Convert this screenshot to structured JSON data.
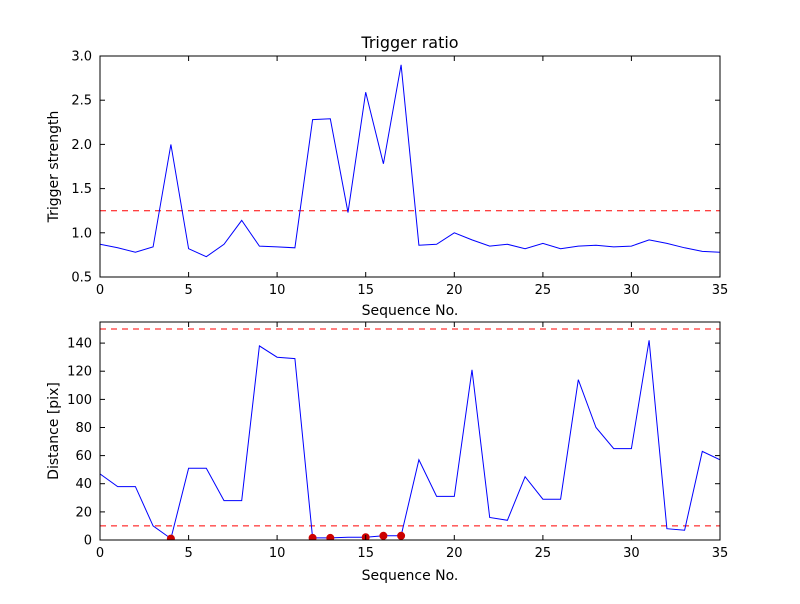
{
  "figure": {
    "background": "#ffffff",
    "line_color": "#0000ff",
    "threshold_color": "#ff0000",
    "marker_color": "#cc0000"
  },
  "chart_data": [
    {
      "type": "line",
      "title": "Trigger ratio",
      "xlabel": "Sequence No.",
      "ylabel": "Trigger strength",
      "xlim": [
        0,
        35
      ],
      "ylim": [
        0.5,
        3.0
      ],
      "grid": false,
      "legend": null,
      "xticks": [
        0,
        5,
        10,
        15,
        20,
        25,
        30,
        35
      ],
      "xticklabels": [
        "0",
        "5",
        "10",
        "15",
        "20",
        "25",
        "30",
        "35"
      ],
      "yticks": [
        0.5,
        1.0,
        1.5,
        2.0,
        2.5,
        3.0
      ],
      "yticklabels": [
        "0.5",
        "1.0",
        "1.5",
        "2.0",
        "2.5",
        "3.0"
      ],
      "hlines": [
        {
          "name": "trigger-threshold-line",
          "y": 1.25,
          "color": "#ff0000",
          "style": "dashed"
        }
      ],
      "series": [
        {
          "name": "trigger-strength",
          "color": "#0000ff",
          "x": [
            0,
            1,
            2,
            3,
            4,
            5,
            6,
            7,
            8,
            9,
            10,
            11,
            12,
            13,
            14,
            15,
            16,
            17,
            18,
            19,
            20,
            21,
            22,
            23,
            24,
            25,
            26,
            27,
            28,
            29,
            30,
            31,
            32,
            33,
            34,
            35
          ],
          "y": [
            0.87,
            0.83,
            0.78,
            0.84,
            2.0,
            0.82,
            0.73,
            0.87,
            1.14,
            0.85,
            0.84,
            0.83,
            2.28,
            2.29,
            1.23,
            2.59,
            1.78,
            2.9,
            0.86,
            0.87,
            1.0,
            0.92,
            0.85,
            0.87,
            0.82,
            0.88,
            0.82,
            0.85,
            0.86,
            0.84,
            0.85,
            0.92,
            0.88,
            0.83,
            0.79,
            0.78
          ]
        }
      ]
    },
    {
      "type": "line",
      "title": "",
      "xlabel": "Sequence No.",
      "ylabel": "Distance [pix]",
      "xlim": [
        0,
        35
      ],
      "ylim": [
        0,
        155
      ],
      "grid": false,
      "legend": null,
      "xticks": [
        0,
        5,
        10,
        15,
        20,
        25,
        30,
        35
      ],
      "xticklabels": [
        "0",
        "5",
        "10",
        "15",
        "20",
        "25",
        "30",
        "35"
      ],
      "yticks": [
        0,
        20,
        40,
        60,
        80,
        100,
        120,
        140
      ],
      "yticklabels": [
        "0",
        "20",
        "40",
        "60",
        "80",
        "100",
        "120",
        "140"
      ],
      "hlines": [
        {
          "name": "upper-distance-threshold-line",
          "y": 150,
          "color": "#ff0000",
          "style": "dashed"
        },
        {
          "name": "lower-distance-threshold-line",
          "y": 10,
          "color": "#ff0000",
          "style": "dashed"
        }
      ],
      "series": [
        {
          "name": "distance",
          "color": "#0000ff",
          "x": [
            0,
            1,
            2,
            3,
            4,
            5,
            6,
            7,
            8,
            9,
            10,
            11,
            12,
            13,
            14,
            15,
            16,
            17,
            18,
            19,
            20,
            21,
            22,
            23,
            24,
            25,
            26,
            27,
            28,
            29,
            30,
            31,
            32,
            33,
            34,
            35
          ],
          "y": [
            47,
            38,
            38,
            10,
            1,
            51,
            51,
            28,
            28,
            138,
            130,
            129,
            1.5,
            1.5,
            2,
            2,
            3,
            3,
            57,
            31,
            31,
            121,
            16,
            14,
            45,
            29,
            29,
            114,
            80,
            65,
            65,
            142,
            8,
            7,
            63,
            57
          ]
        }
      ],
      "markers": {
        "name": "triggered-points",
        "color": "#cc0000",
        "size": 4,
        "points": [
          [
            4,
            1
          ],
          [
            12,
            1.5
          ],
          [
            13,
            1.5
          ],
          [
            15,
            2
          ],
          [
            16,
            3
          ],
          [
            17,
            3
          ]
        ]
      }
    }
  ]
}
